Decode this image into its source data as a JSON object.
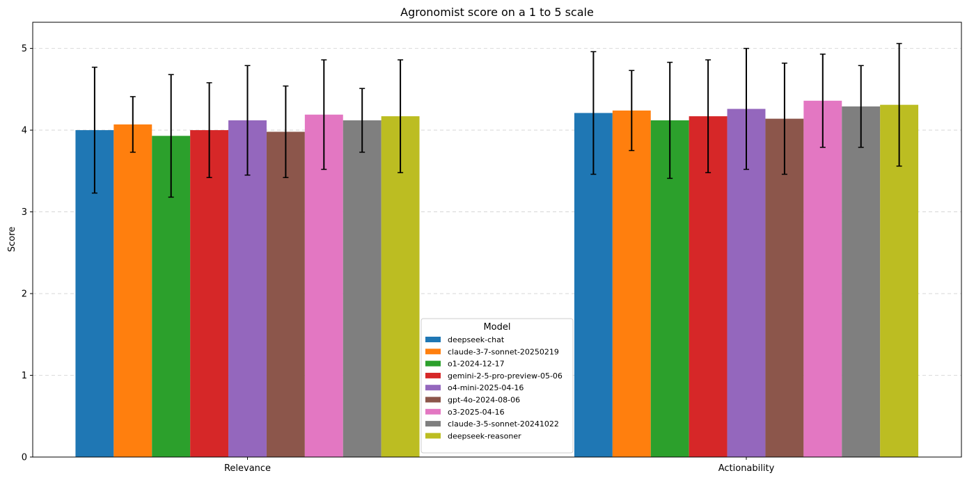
{
  "chart_data": {
    "type": "bar",
    "title": "Agronomist score on a 1 to 5 scale",
    "xlabel": "",
    "ylabel": "Score",
    "ylim": [
      0,
      5.32
    ],
    "yticks": [
      0,
      1,
      2,
      3,
      4,
      5
    ],
    "grid": "horizontal dashed",
    "categories": [
      "Relevance",
      "Actionability"
    ],
    "error_bars": true,
    "legend": {
      "title": "Model",
      "position": "bottom-center"
    },
    "series": [
      {
        "name": "deepseek-chat",
        "color": "#1f77b4",
        "values": [
          4.0,
          4.21
        ],
        "errors": [
          0.77,
          0.75
        ]
      },
      {
        "name": "claude-3-7-sonnet-20250219",
        "color": "#ff7f0e",
        "values": [
          4.07,
          4.24
        ],
        "errors": [
          0.34,
          0.49
        ]
      },
      {
        "name": "o1-2024-12-17",
        "color": "#2ca02c",
        "values": [
          3.93,
          4.12
        ],
        "errors": [
          0.75,
          0.71
        ]
      },
      {
        "name": "gemini-2-5-pro-preview-05-06",
        "color": "#d62728",
        "values": [
          4.0,
          4.17
        ],
        "errors": [
          0.58,
          0.69
        ]
      },
      {
        "name": "o4-mini-2025-04-16",
        "color": "#9467bd",
        "values": [
          4.12,
          4.26
        ],
        "errors": [
          0.67,
          0.74
        ]
      },
      {
        "name": "gpt-4o-2024-08-06",
        "color": "#8c564b",
        "values": [
          3.98,
          4.14
        ],
        "errors": [
          0.56,
          0.68
        ]
      },
      {
        "name": "o3-2025-04-16",
        "color": "#e377c2",
        "values": [
          4.19,
          4.36
        ],
        "errors": [
          0.67,
          0.57
        ]
      },
      {
        "name": "claude-3-5-sonnet-20241022",
        "color": "#7f7f7f",
        "values": [
          4.12,
          4.29
        ],
        "errors": [
          0.39,
          0.5
        ]
      },
      {
        "name": "deepseek-reasoner",
        "color": "#bcbd22",
        "values": [
          4.17,
          4.31
        ],
        "errors": [
          0.69,
          0.75
        ]
      }
    ]
  }
}
